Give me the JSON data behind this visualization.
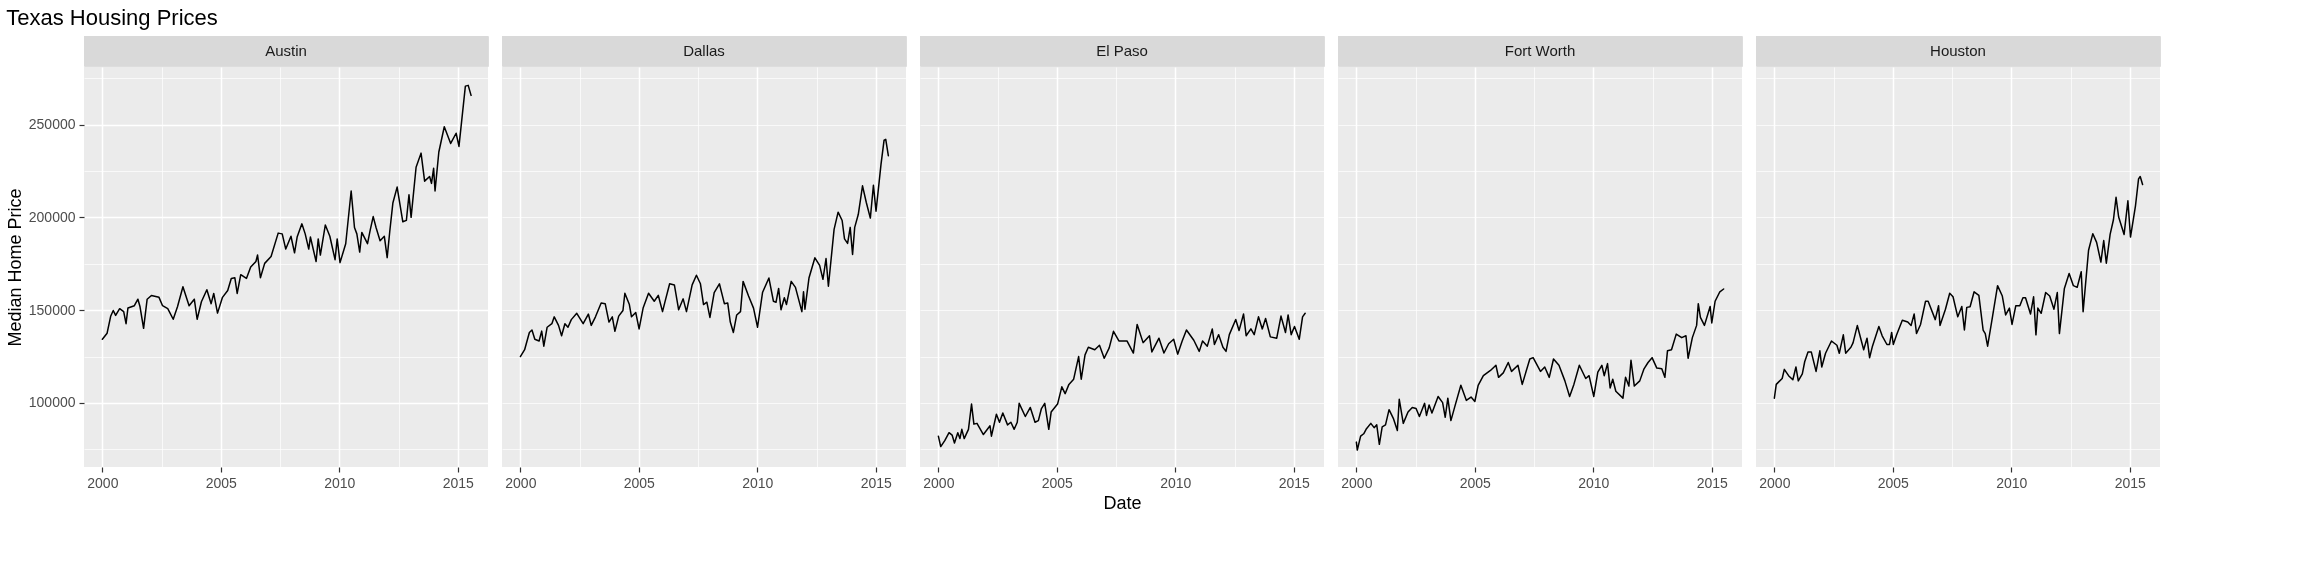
{
  "chart_data": [
    {
      "type": "line",
      "title": "Texas Housing Prices",
      "subtitle": "Austin",
      "ylabel": "Median Home Price",
      "xlim": [
        1999.225,
        2016.275
      ],
      "ylim": [
        65500,
        281000
      ],
      "xticks": [
        2000,
        {
          "value": 2002.5,
          "label": null
        },
        2005,
        {
          "value": 2007.5,
          "label": null
        },
        2010,
        {
          "value": 2012.5,
          "label": null
        },
        2015
      ],
      "yticks": [
        {
          "value": 75000,
          "label": null
        },
        100000,
        {
          "value": 125000,
          "label": null
        },
        150000,
        {
          "value": 175000,
          "label": null
        },
        200000,
        {
          "value": 225000,
          "label": null
        },
        250000,
        {
          "value": 275000,
          "label": null
        }
      ],
      "grid": true,
      "series": [
        {
          "color": "#000000",
          "x": [
            2000.0,
            2000.2,
            2000.35,
            2000.46,
            2000.56,
            2000.73,
            2000.9,
            2001.0,
            2001.08,
            2001.35,
            2001.5,
            2001.59,
            2001.74,
            2001.89,
            2002.07,
            2002.39,
            2002.54,
            2002.76,
            2002.99,
            2003.17,
            2003.4,
            2003.66,
            2003.88,
            2004.0,
            2004.18,
            2004.41,
            2004.59,
            2004.7,
            2004.86,
            2005.07,
            2005.29,
            2005.44,
            2005.59,
            2005.69,
            2005.84,
            2006.08,
            2006.26,
            2006.48,
            2006.55,
            2006.67,
            2006.85,
            2007.12,
            2007.42,
            2007.59,
            2007.74,
            2007.96,
            2008.11,
            2008.22,
            2008.42,
            2008.56,
            2008.71,
            2008.78,
            2009.02,
            2009.11,
            2009.2,
            2009.41,
            2009.6,
            2009.82,
            2009.91,
            2010.03,
            2010.27,
            2010.5,
            2010.64,
            2010.74,
            2010.86,
            2010.95,
            2011.19,
            2011.31,
            2011.43,
            2011.55,
            2011.72,
            2011.9,
            2012.02,
            2012.13,
            2012.26,
            2012.44,
            2012.68,
            2012.83,
            2012.94,
            2013.03,
            2013.24,
            2013.45,
            2013.6,
            2013.81,
            2013.89,
            2013.98,
            2014.04,
            2014.2,
            2014.43,
            2014.7,
            2014.93,
            2015.05,
            2015.32,
            2015.44,
            2015.56
          ],
          "values": [
            134300,
            137600,
            146700,
            149800,
            147200,
            150800,
            149200,
            142700,
            151200,
            152400,
            155900,
            151800,
            140200,
            155900,
            157900,
            156900,
            152400,
            150800,
            145100,
            151800,
            162600,
            152400,
            155900,
            145100,
            154500,
            161000,
            153500,
            159000,
            148400,
            156900,
            160600,
            167100,
            167500,
            159000,
            169100,
            167100,
            173200,
            176200,
            179700,
            167500,
            175200,
            178900,
            191500,
            191100,
            182900,
            189800,
            180900,
            189400,
            196500,
            191100,
            182900,
            189400,
            176200,
            188400,
            179700,
            195900,
            189800,
            177200,
            188400,
            175600,
            185800,
            214200,
            194500,
            191100,
            181300,
            191900,
            185800,
            193500,
            200400,
            194500,
            187400,
            189800,
            178300,
            192500,
            207700,
            216300,
            197600,
            198400,
            212200,
            200000,
            227000,
            234600,
            219500,
            222000,
            218300,
            226400,
            214200,
            235200,
            248800,
            239800,
            245300,
            238200,
            270700,
            271100,
            265700
          ]
        }
      ]
    },
    {
      "type": "line",
      "subtitle": "Dallas",
      "xlim": [
        1999.225,
        2016.275
      ],
      "ylim": [
        65500,
        281000
      ],
      "xticks": [
        2000,
        {
          "value": 2002.5,
          "label": null
        },
        2005,
        {
          "value": 2007.5,
          "label": null
        },
        2010,
        {
          "value": 2012.5,
          "label": null
        },
        2015
      ],
      "yticks": [
        {
          "value": 75000,
          "label": null
        },
        {
          "value": 100000,
          "label": null
        },
        {
          "value": 125000,
          "label": null
        },
        {
          "value": 150000,
          "label": null
        },
        {
          "value": 175000,
          "label": null
        },
        {
          "value": 200000,
          "label": null
        },
        {
          "value": 225000,
          "label": null
        },
        {
          "value": 250000,
          "label": null
        },
        {
          "value": 275000,
          "label": null
        }
      ],
      "grid": true,
      "tick_labels": "x",
      "series": [
        {
          "color": "#000000",
          "x": [
            2000.0,
            2000.18,
            2000.38,
            2000.49,
            2000.61,
            2000.79,
            2000.9,
            2000.99,
            2001.13,
            2001.33,
            2001.43,
            2001.61,
            2001.74,
            2001.88,
            2002.01,
            2002.15,
            2002.38,
            2002.65,
            2002.87,
            2002.99,
            2003.17,
            2003.41,
            2003.58,
            2003.74,
            2003.88,
            2003.99,
            2004.15,
            2004.33,
            2004.41,
            2004.6,
            2004.69,
            2004.87,
            2005.01,
            2005.18,
            2005.41,
            2005.65,
            2005.82,
            2006.0,
            2006.1,
            2006.3,
            2006.5,
            2006.68,
            2006.87,
            2007.01,
            2007.25,
            2007.43,
            2007.6,
            2007.73,
            2007.87,
            2008.0,
            2008.18,
            2008.4,
            2008.61,
            2008.75,
            2008.86,
            2008.99,
            2009.13,
            2009.29,
            2009.4,
            2009.63,
            2009.84,
            2010.01,
            2010.22,
            2010.49,
            2010.68,
            2010.79,
            2010.9,
            2011.0,
            2011.14,
            2011.23,
            2011.43,
            2011.61,
            2011.88,
            2011.95,
            2012.01,
            2012.18,
            2012.43,
            2012.63,
            2012.77,
            2012.9,
            2013.0,
            2013.24,
            2013.41,
            2013.58,
            2013.68,
            2013.81,
            2013.92,
            2014.02,
            2014.11,
            2014.26,
            2014.44,
            2014.6,
            2014.77,
            2014.9,
            2015.01,
            2015.22,
            2015.35,
            2015.42,
            2015.53
          ],
          "values": [
            125000,
            128700,
            138000,
            139300,
            134300,
            133400,
            138700,
            130600,
            140800,
            142700,
            146400,
            141800,
            136200,
            142700,
            140800,
            144900,
            148300,
            142700,
            147900,
            141800,
            146400,
            153900,
            153500,
            143600,
            146400,
            138600,
            146800,
            149800,
            159100,
            153000,
            146400,
            148700,
            139900,
            151100,
            159100,
            154800,
            158000,
            149200,
            154300,
            164200,
            163600,
            150200,
            156100,
            149200,
            163600,
            168800,
            164200,
            153000,
            154300,
            146100,
            159500,
            164200,
            153500,
            153900,
            143600,
            138000,
            147400,
            149200,
            165500,
            157600,
            151100,
            140800,
            159500,
            167300,
            154800,
            154300,
            161700,
            150200,
            156700,
            153000,
            165500,
            162300,
            149200,
            159900,
            150500,
            167300,
            178200,
            174100,
            166600,
            177800,
            162900,
            193500,
            202800,
            198300,
            188400,
            186000,
            194600,
            180000,
            194600,
            201500,
            217000,
            208000,
            199600,
            217300,
            203300,
            228500,
            241600,
            242000,
            233200
          ]
        }
      ]
    },
    {
      "type": "line",
      "subtitle": "El Paso",
      "xlabel": "Date",
      "xlim": [
        1999.225,
        2016.275
      ],
      "ylim": [
        65500,
        281000
      ],
      "xticks": [
        2000,
        {
          "value": 2002.5,
          "label": null
        },
        2005,
        {
          "value": 2007.5,
          "label": null
        },
        2010,
        {
          "value": 2012.5,
          "label": null
        },
        2015
      ],
      "yticks": [
        {
          "value": 75000,
          "label": null
        },
        {
          "value": 100000,
          "label": null
        },
        {
          "value": 125000,
          "label": null
        },
        {
          "value": 150000,
          "label": null
        },
        {
          "value": 175000,
          "label": null
        },
        {
          "value": 200000,
          "label": null
        },
        {
          "value": 225000,
          "label": null
        },
        {
          "value": 250000,
          "label": null
        },
        {
          "value": 275000,
          "label": null
        }
      ],
      "grid": true,
      "tick_labels": "x",
      "series": [
        {
          "color": "#000000",
          "x": [
            2000.0,
            2000.1,
            2000.27,
            2000.45,
            2000.58,
            2000.68,
            2000.82,
            2000.91,
            2000.99,
            2001.09,
            2001.27,
            2001.4,
            2001.5,
            2001.63,
            2001.9,
            2002.18,
            2002.24,
            2002.45,
            2002.58,
            2002.72,
            2002.92,
            2003.06,
            2003.2,
            2003.33,
            2003.41,
            2003.67,
            2003.88,
            2004.08,
            2004.22,
            2004.35,
            2004.49,
            2004.66,
            2004.76,
            2005.03,
            2005.21,
            2005.35,
            2005.51,
            2005.71,
            2005.92,
            2006.03,
            2006.19,
            2006.33,
            2006.6,
            2006.8,
            2007.0,
            2007.21,
            2007.39,
            2007.62,
            2007.96,
            2008.23,
            2008.39,
            2008.64,
            2008.91,
            2009.01,
            2009.31,
            2009.52,
            2009.72,
            2009.93,
            2010.1,
            2010.29,
            2010.47,
            2010.78,
            2011.01,
            2011.15,
            2011.35,
            2011.56,
            2011.65,
            2011.83,
            2012.01,
            2012.14,
            2012.28,
            2012.55,
            2012.69,
            2012.88,
            2012.99,
            2013.19,
            2013.33,
            2013.51,
            2013.67,
            2013.81,
            2014.01,
            2014.28,
            2014.46,
            2014.65,
            2014.76,
            2014.89,
            2015.03,
            2015.23,
            2015.37,
            2015.48
          ],
          "values": [
            82100,
            76500,
            79700,
            84000,
            82700,
            78400,
            84000,
            80800,
            85800,
            80800,
            85800,
            99400,
            88600,
            89000,
            83000,
            87700,
            82100,
            93900,
            89600,
            94600,
            88200,
            89600,
            85800,
            89600,
            99800,
            92700,
            97600,
            89600,
            90500,
            97000,
            99800,
            85800,
            95100,
            99400,
            108700,
            105000,
            110000,
            112800,
            125000,
            112800,
            125900,
            130000,
            128700,
            131100,
            124100,
            129700,
            138600,
            133400,
            133400,
            126900,
            142300,
            132500,
            136200,
            127500,
            134900,
            126900,
            131900,
            134300,
            126300,
            133400,
            139300,
            133800,
            127800,
            133400,
            130600,
            139900,
            131500,
            136800,
            130000,
            127800,
            136800,
            145000,
            139000,
            147900,
            136200,
            139900,
            136800,
            146400,
            139900,
            145500,
            135600,
            134900,
            146800,
            138000,
            147400,
            136800,
            141200,
            134300,
            146400,
            148300
          ]
        }
      ]
    },
    {
      "type": "line",
      "subtitle": "Fort Worth",
      "xlim": [
        1999.225,
        2016.275
      ],
      "ylim": [
        65500,
        281000
      ],
      "xticks": [
        2000,
        {
          "value": 2002.5,
          "label": null
        },
        2005,
        {
          "value": 2007.5,
          "label": null
        },
        2010,
        {
          "value": 2012.5,
          "label": null
        },
        2015
      ],
      "yticks": [
        {
          "value": 75000,
          "label": null
        },
        {
          "value": 100000,
          "label": null
        },
        {
          "value": 125000,
          "label": null
        },
        {
          "value": 150000,
          "label": null
        },
        {
          "value": 175000,
          "label": null
        },
        {
          "value": 200000,
          "label": null
        },
        {
          "value": 225000,
          "label": null
        },
        {
          "value": 250000,
          "label": null
        },
        {
          "value": 275000,
          "label": null
        }
      ],
      "grid": true,
      "tick_labels": "x",
      "series": [
        {
          "color": "#000000",
          "x": [
            2000.0,
            2000.04,
            2000.18,
            2000.31,
            2000.41,
            2000.61,
            2000.75,
            2000.86,
            2000.97,
            2001.09,
            2001.23,
            2001.38,
            2001.57,
            2001.73,
            2001.81,
            2001.98,
            2002.18,
            2002.36,
            2002.52,
            2002.66,
            2002.88,
            2002.96,
            2003.07,
            2003.19,
            2003.45,
            2003.64,
            2003.75,
            2003.86,
            2003.99,
            2004.16,
            2004.41,
            2004.64,
            2004.84,
            2005.0,
            2005.14,
            2005.36,
            2005.66,
            2005.89,
            2006.0,
            2006.2,
            2006.41,
            2006.55,
            2006.82,
            2007.0,
            2007.32,
            2007.46,
            2007.77,
            2007.95,
            2008.14,
            2008.32,
            2008.55,
            2008.8,
            2009.0,
            2009.18,
            2009.41,
            2009.68,
            2009.82,
            2010.02,
            2010.19,
            2010.36,
            2010.46,
            2010.6,
            2010.71,
            2010.82,
            2010.95,
            2011.25,
            2011.36,
            2011.5,
            2011.59,
            2011.73,
            2011.96,
            2012.14,
            2012.31,
            2012.48,
            2012.68,
            2012.89,
            2013.02,
            2013.13,
            2013.3,
            2013.5,
            2013.73,
            2013.91,
            2014.0,
            2014.18,
            2014.36,
            2014.43,
            2014.52,
            2014.69,
            2014.93,
            2015.0,
            2015.14,
            2015.34,
            2015.5
          ],
          "values": [
            78900,
            74600,
            82100,
            83400,
            85800,
            89000,
            86700,
            88200,
            77700,
            87100,
            88200,
            96400,
            91400,
            85200,
            102000,
            89000,
            95100,
            97600,
            97000,
            92700,
            99800,
            93300,
            98900,
            94600,
            103500,
            100200,
            92300,
            102600,
            90500,
            98300,
            109500,
            101400,
            103200,
            100800,
            109500,
            114700,
            117500,
            120300,
            113800,
            116200,
            121800,
            117000,
            120300,
            110000,
            123700,
            124400,
            117000,
            119400,
            113800,
            123700,
            120300,
            111900,
            103500,
            110000,
            120300,
            113200,
            114700,
            103500,
            116600,
            120300,
            114700,
            121200,
            108100,
            112800,
            106300,
            102600,
            113800,
            109100,
            123000,
            109100,
            111900,
            118400,
            121800,
            124400,
            118800,
            118400,
            113800,
            128100,
            128700,
            137100,
            135200,
            136200,
            124100,
            135200,
            141800,
            153500,
            146100,
            141800,
            152000,
            143100,
            154800,
            159900,
            161400
          ]
        }
      ]
    },
    {
      "type": "line",
      "subtitle": "Houston",
      "xlim": [
        1999.225,
        2016.275
      ],
      "ylim": [
        65500,
        281000
      ],
      "xticks": [
        2000,
        {
          "value": 2002.5,
          "label": null
        },
        2005,
        {
          "value": 2007.5,
          "label": null
        },
        2010,
        {
          "value": 2012.5,
          "label": null
        },
        2015
      ],
      "yticks": [
        {
          "value": 75000,
          "label": null
        },
        {
          "value": 100000,
          "label": null
        },
        {
          "value": 125000,
          "label": null
        },
        {
          "value": 150000,
          "label": null
        },
        {
          "value": 175000,
          "label": null
        },
        {
          "value": 200000,
          "label": null
        },
        {
          "value": 225000,
          "label": null
        },
        {
          "value": 250000,
          "label": null
        },
        {
          "value": 275000,
          "label": null
        }
      ],
      "grid": true,
      "tick_labels": "x",
      "series": [
        {
          "color": "#000000",
          "x": [
            2000.0,
            2000.08,
            2000.33,
            2000.42,
            2000.6,
            2000.78,
            2000.91,
            2001.01,
            2001.18,
            2001.28,
            2001.42,
            2001.56,
            2001.76,
            2001.92,
            2002.0,
            2002.16,
            2002.41,
            2002.64,
            2002.74,
            2002.91,
            2003.01,
            2003.23,
            2003.32,
            2003.5,
            2003.77,
            2003.91,
            2004.02,
            2004.14,
            2004.41,
            2004.55,
            2004.75,
            2004.86,
            2004.95,
            2005.02,
            2005.16,
            2005.4,
            2005.63,
            2005.77,
            2005.9,
            2006.0,
            2006.17,
            2006.38,
            2006.49,
            2006.79,
            2006.93,
            2006.99,
            2007.22,
            2007.4,
            2007.54,
            2007.74,
            2007.91,
            2008.02,
            2008.12,
            2008.26,
            2008.43,
            2008.63,
            2008.81,
            2008.9,
            2009.0,
            2009.21,
            2009.42,
            2009.62,
            2009.76,
            2009.92,
            2010.03,
            2010.19,
            2010.36,
            2010.49,
            2010.6,
            2010.81,
            2010.94,
            2011.04,
            2011.12,
            2011.26,
            2011.45,
            2011.62,
            2011.8,
            2011.94,
            2012.03,
            2012.24,
            2012.44,
            2012.62,
            2012.78,
            2012.95,
            2013.03,
            2013.26,
            2013.44,
            2013.6,
            2013.78,
            2013.9,
            2014.01,
            2014.17,
            2014.31,
            2014.42,
            2014.53,
            2014.76,
            2014.92,
            2015.03,
            2015.24,
            2015.37,
            2015.44,
            2015.54
          ],
          "values": [
            102600,
            110000,
            113200,
            118100,
            114700,
            112500,
            119400,
            111900,
            115700,
            122200,
            127400,
            127400,
            117000,
            128100,
            119400,
            126800,
            133400,
            131100,
            126800,
            136700,
            126800,
            130000,
            132400,
            141700,
            128700,
            134900,
            124400,
            130600,
            141200,
            136200,
            131500,
            131500,
            138000,
            131500,
            136800,
            144600,
            143600,
            141700,
            147900,
            137400,
            142300,
            154800,
            154800,
            144900,
            152400,
            141700,
            150500,
            159100,
            157200,
            146400,
            152000,
            139300,
            151500,
            151800,
            159900,
            158000,
            139300,
            137400,
            130600,
            146800,
            163200,
            157600,
            147400,
            151100,
            142300,
            152400,
            152400,
            156700,
            156700,
            147900,
            157200,
            136700,
            151100,
            148300,
            159500,
            157600,
            150500,
            159500,
            137400,
            161700,
            169800,
            163200,
            162300,
            170700,
            149200,
            182300,
            191200,
            186500,
            175900,
            187500,
            175300,
            190800,
            198700,
            210800,
            200200,
            190800,
            208900,
            189400,
            206200,
            220700,
            222000,
            217700
          ]
        }
      ]
    }
  ]
}
